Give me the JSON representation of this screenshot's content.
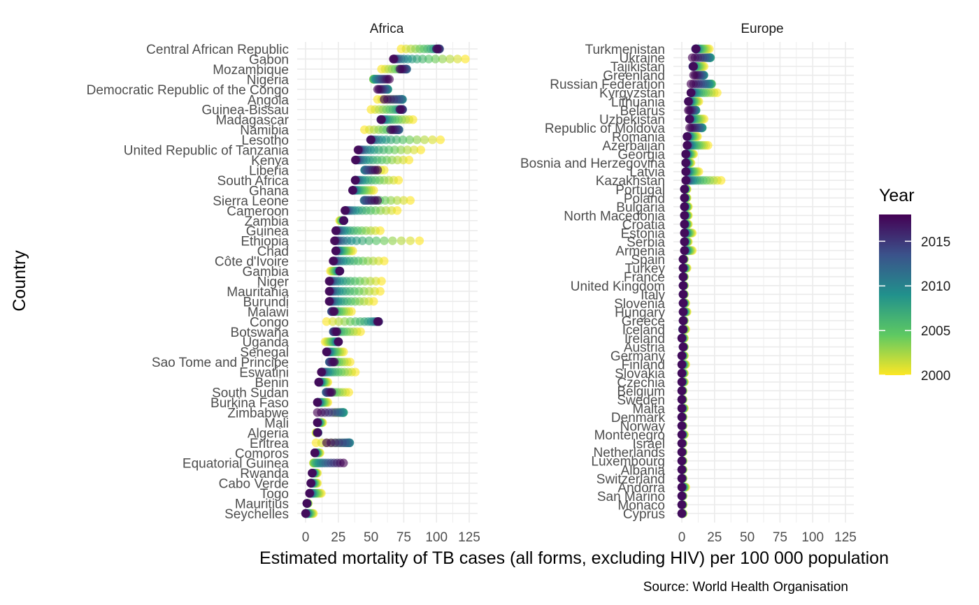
{
  "chart_data": {
    "type": "scatter",
    "xlabel": "Estimated mortality of TB cases (all forms, excluding HIV) per 100 000 population",
    "ylabel": "Country",
    "caption": "Source: World Health Organisation",
    "xlim": [
      0,
      125
    ],
    "x_ticks": [
      "0",
      "25",
      "50",
      "75",
      "100",
      "125"
    ],
    "grid": true,
    "legend": {
      "title": "Year",
      "position": "right",
      "labels": [
        "2000",
        "2005",
        "2010",
        "2015"
      ],
      "range": [
        2000,
        2018
      ]
    },
    "colors": [
      "#fde725",
      "#5ec962",
      "#21918c",
      "#3b528b",
      "#440154"
    ],
    "panels": [
      {
        "title": "Africa",
        "countries": [
          {
            "name": "Central African Republic",
            "min": 73,
            "max": 108,
            "first": 73,
            "last": 100
          },
          {
            "name": "Gabon",
            "min": 67,
            "max": 122,
            "first": 122,
            "last": 67
          },
          {
            "name": "Mozambique",
            "min": 54,
            "max": 84,
            "first": 58,
            "last": 72
          },
          {
            "name": "Nigeria",
            "min": 51,
            "max": 65,
            "first": 52,
            "last": 64
          },
          {
            "name": "Democratic Republic of the Congo",
            "min": 50,
            "max": 66,
            "first": 60,
            "last": 55
          },
          {
            "name": "Angola",
            "min": 50,
            "max": 85,
            "first": 55,
            "last": 60
          },
          {
            "name": "Guinea-Bissau",
            "min": 50,
            "max": 79,
            "first": 50,
            "last": 72
          },
          {
            "name": "Madagascar",
            "min": 55,
            "max": 82,
            "first": 82,
            "last": 58
          },
          {
            "name": "Namibia",
            "min": 45,
            "max": 80,
            "first": 45,
            "last": 65
          },
          {
            "name": "Lesotho",
            "min": 46,
            "max": 103,
            "first": 103,
            "last": 50
          },
          {
            "name": "United Republic of Tanzania",
            "min": 40,
            "max": 88,
            "first": 88,
            "last": 40
          },
          {
            "name": "Kenya",
            "min": 38,
            "max": 79,
            "first": 79,
            "last": 38
          },
          {
            "name": "Liberia",
            "min": 37,
            "max": 69,
            "first": 60,
            "last": 55
          },
          {
            "name": "South Africa",
            "min": 36,
            "max": 71,
            "first": 71,
            "last": 38
          },
          {
            "name": "Ghana",
            "min": 35,
            "max": 52,
            "first": 52,
            "last": 36
          },
          {
            "name": "Sierra Leone",
            "min": 32,
            "max": 80,
            "first": 80,
            "last": 55
          },
          {
            "name": "Cameroon",
            "min": 30,
            "max": 70,
            "first": 70,
            "last": 30
          },
          {
            "name": "Zambia",
            "min": 26,
            "max": 30,
            "first": 26,
            "last": 29
          },
          {
            "name": "Guinea",
            "min": 23,
            "max": 57,
            "first": 57,
            "last": 23
          },
          {
            "name": "Ethiopia",
            "min": 22,
            "max": 87,
            "first": 87,
            "last": 22
          },
          {
            "name": "Chad",
            "min": 23,
            "max": 36,
            "first": 36,
            "last": 23
          },
          {
            "name": "Côte d'Ivoire",
            "min": 21,
            "max": 60,
            "first": 60,
            "last": 21
          },
          {
            "name": "Gambia",
            "min": 19,
            "max": 27,
            "first": 19,
            "last": 26
          },
          {
            "name": "Niger",
            "min": 18,
            "max": 58,
            "first": 58,
            "last": 18
          },
          {
            "name": "Mauritania",
            "min": 18,
            "max": 57,
            "first": 57,
            "last": 18
          },
          {
            "name": "Burundi",
            "min": 18,
            "max": 52,
            "first": 52,
            "last": 18
          },
          {
            "name": "Malawi",
            "min": 16,
            "max": 35,
            "first": 35,
            "last": 22
          },
          {
            "name": "Congo",
            "min": 16,
            "max": 60,
            "first": 16,
            "last": 55
          },
          {
            "name": "Botswana",
            "min": 16,
            "max": 42,
            "first": 42,
            "last": 24
          },
          {
            "name": "Uganda",
            "min": 15,
            "max": 26,
            "first": 15,
            "last": 25
          },
          {
            "name": "Senegal",
            "min": 16,
            "max": 29,
            "first": 29,
            "last": 16
          },
          {
            "name": "Sao Tome and Principe",
            "min": 13,
            "max": 34,
            "first": 34,
            "last": 22
          },
          {
            "name": "Eswatini",
            "min": 12,
            "max": 38,
            "first": 38,
            "last": 12
          },
          {
            "name": "Benin",
            "min": 10,
            "max": 17,
            "first": 17,
            "last": 10
          },
          {
            "name": "South Sudan",
            "min": 10,
            "max": 33,
            "first": 33,
            "last": 20
          },
          {
            "name": "Burkina Faso",
            "min": 9,
            "max": 17,
            "first": 17,
            "last": 9
          },
          {
            "name": "Zimbabwe",
            "min": 9,
            "max": 37,
            "first": 22,
            "last": 9
          },
          {
            "name": "Mali",
            "min": 9,
            "max": 13,
            "first": 13,
            "last": 9
          },
          {
            "name": "Algeria",
            "min": 8,
            "max": 10,
            "first": 8,
            "last": 9
          },
          {
            "name": "Eritrea",
            "min": 8,
            "max": 48,
            "first": 8,
            "last": 16
          },
          {
            "name": "Comoros",
            "min": 7,
            "max": 11,
            "first": 11,
            "last": 7
          },
          {
            "name": "Equatorial Guinea",
            "min": 6,
            "max": 29,
            "first": 6,
            "last": 29
          },
          {
            "name": "Rwanda",
            "min": 5,
            "max": 9,
            "first": 9,
            "last": 5
          },
          {
            "name": "Cabo Verde",
            "min": 4,
            "max": 9,
            "first": 9,
            "last": 4
          },
          {
            "name": "Togo",
            "min": 3,
            "max": 12,
            "first": 12,
            "last": 3
          },
          {
            "name": "Mauritius",
            "min": 1,
            "max": 2,
            "first": 2,
            "last": 1
          },
          {
            "name": "Seychelles",
            "min": 0,
            "max": 6,
            "first": 6,
            "last": 0
          }
        ]
      },
      {
        "title": "Europe",
        "countries": [
          {
            "name": "Turkmenistan",
            "min": 9,
            "max": 21,
            "first": 21,
            "last": 11
          },
          {
            "name": "Ukraine",
            "min": 7,
            "max": 28,
            "first": 16,
            "last": 8
          },
          {
            "name": "Tajikistan",
            "min": 7,
            "max": 17,
            "first": 17,
            "last": 9
          },
          {
            "name": "Greenland",
            "min": 7,
            "max": 21,
            "first": 12,
            "last": 9
          },
          {
            "name": "Russian Federation",
            "min": 6,
            "max": 25,
            "first": 22,
            "last": 7
          },
          {
            "name": "Kyrgyzstan",
            "min": 6,
            "max": 27,
            "first": 27,
            "last": 7
          },
          {
            "name": "Lithuania",
            "min": 5,
            "max": 13,
            "first": 13,
            "last": 5
          },
          {
            "name": "Belarus",
            "min": 5,
            "max": 13,
            "first": 9,
            "last": 5
          },
          {
            "name": "Uzbekistan",
            "min": 5,
            "max": 17,
            "first": 17,
            "last": 6
          },
          {
            "name": "Republic of Moldova",
            "min": 5,
            "max": 19,
            "first": 13,
            "last": 6
          },
          {
            "name": "Romania",
            "min": 4,
            "max": 12,
            "first": 12,
            "last": 4
          },
          {
            "name": "Azerbaijan",
            "min": 4,
            "max": 20,
            "first": 20,
            "last": 4
          },
          {
            "name": "Georgia",
            "min": 3,
            "max": 9,
            "first": 9,
            "last": 3
          },
          {
            "name": "Bosnia and Herzegovina",
            "min": 3,
            "max": 7,
            "first": 7,
            "last": 3
          },
          {
            "name": "Latvia",
            "min": 3,
            "max": 13,
            "first": 13,
            "last": 3
          },
          {
            "name": "Kazakhstan",
            "min": 3,
            "max": 30,
            "first": 30,
            "last": 3
          },
          {
            "name": "Portugal",
            "min": 2,
            "max": 4,
            "first": 4,
            "last": 2
          },
          {
            "name": "Poland",
            "min": 2,
            "max": 4,
            "first": 4,
            "last": 2
          },
          {
            "name": "Bulgaria",
            "min": 2,
            "max": 5,
            "first": 5,
            "last": 2
          },
          {
            "name": "North Macedonia",
            "min": 2,
            "max": 5,
            "first": 5,
            "last": 2
          },
          {
            "name": "Croatia",
            "min": 2,
            "max": 5,
            "first": 5,
            "last": 2
          },
          {
            "name": "Estonia",
            "min": 2,
            "max": 8,
            "first": 8,
            "last": 2
          },
          {
            "name": "Serbia",
            "min": 2,
            "max": 5,
            "first": 5,
            "last": 2
          },
          {
            "name": "Armenia",
            "min": 2,
            "max": 8,
            "first": 8,
            "last": 2
          },
          {
            "name": "Spain",
            "min": 1,
            "max": 2,
            "first": 2,
            "last": 1
          },
          {
            "name": "Turkey",
            "min": 1,
            "max": 4,
            "first": 4,
            "last": 1
          },
          {
            "name": "France",
            "min": 1,
            "max": 2,
            "first": 2,
            "last": 1
          },
          {
            "name": "United Kingdom",
            "min": 1,
            "max": 2,
            "first": 2,
            "last": 1
          },
          {
            "name": "Italy",
            "min": 1,
            "max": 2,
            "first": 2,
            "last": 1
          },
          {
            "name": "Slovenia",
            "min": 1,
            "max": 3,
            "first": 3,
            "last": 1
          },
          {
            "name": "Hungary",
            "min": 1,
            "max": 4,
            "first": 4,
            "last": 1
          },
          {
            "name": "Greece",
            "min": 1,
            "max": 2,
            "first": 2,
            "last": 1
          },
          {
            "name": "Iceland",
            "min": 0,
            "max": 3,
            "first": 3,
            "last": 1
          },
          {
            "name": "Ireland",
            "min": 0,
            "max": 2,
            "first": 2,
            "last": 0
          },
          {
            "name": "Austria",
            "min": 1,
            "max": 2,
            "first": 2,
            "last": 1
          },
          {
            "name": "Germany",
            "min": 0,
            "max": 2,
            "first": 2,
            "last": 0
          },
          {
            "name": "Finland",
            "min": 0,
            "max": 3,
            "first": 3,
            "last": 0
          },
          {
            "name": "Slovakia",
            "min": 0,
            "max": 2,
            "first": 2,
            "last": 0
          },
          {
            "name": "Czechia",
            "min": 0,
            "max": 2,
            "first": 2,
            "last": 0
          },
          {
            "name": "Belgium",
            "min": 0,
            "max": 1,
            "first": 1,
            "last": 0
          },
          {
            "name": "Sweden",
            "min": 0,
            "max": 1,
            "first": 1,
            "last": 0
          },
          {
            "name": "Malta",
            "min": 0,
            "max": 2,
            "first": 2,
            "last": 0
          },
          {
            "name": "Denmark",
            "min": 0,
            "max": 1,
            "first": 1,
            "last": 0
          },
          {
            "name": "Norway",
            "min": 0,
            "max": 1,
            "first": 1,
            "last": 0
          },
          {
            "name": "Montenegro",
            "min": 0,
            "max": 2,
            "first": 2,
            "last": 0
          },
          {
            "name": "Israel",
            "min": 0,
            "max": 1,
            "first": 1,
            "last": 0
          },
          {
            "name": "Netherlands",
            "min": 0,
            "max": 1,
            "first": 1,
            "last": 0
          },
          {
            "name": "Luxembourg",
            "min": 0,
            "max": 1,
            "first": 1,
            "last": 0
          },
          {
            "name": "Albania",
            "min": 0,
            "max": 1,
            "first": 1,
            "last": 0
          },
          {
            "name": "Switzerland",
            "min": 0,
            "max": 1,
            "first": 1,
            "last": 0
          },
          {
            "name": "Andorra",
            "min": 0,
            "max": 3,
            "first": 3,
            "last": 0
          },
          {
            "name": "San Marino",
            "min": 0,
            "max": 1,
            "first": 1,
            "last": 0
          },
          {
            "name": "Monaco",
            "min": 0,
            "max": 1,
            "first": 1,
            "last": 0
          },
          {
            "name": "Cyprus",
            "min": 0,
            "max": 1,
            "first": 1,
            "last": 0
          }
        ]
      }
    ]
  }
}
